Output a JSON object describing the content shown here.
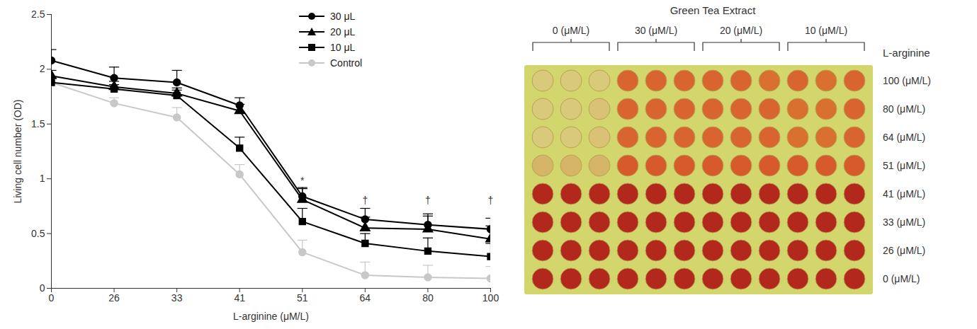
{
  "chart_data": {
    "type": "line",
    "x_label": "L-arginine (μM/L)",
    "y_label": "Living cell number (OD)",
    "categories": [
      "0",
      "26",
      "33",
      "41",
      "51",
      "64",
      "80",
      "100"
    ],
    "ylim": [
      0,
      2.5
    ],
    "yticks": [
      0,
      0.5,
      1,
      1.5,
      2,
      2.5
    ],
    "legend": "upper right",
    "series": [
      {
        "name": "30 μL",
        "color": "#000000",
        "marker": "circle",
        "values": [
          2.08,
          1.92,
          1.88,
          1.67,
          0.84,
          0.63,
          0.58,
          0.54
        ],
        "errors": [
          0.1,
          0.1,
          0.11,
          0.07,
          0.08,
          0.1,
          0.1,
          0.1
        ]
      },
      {
        "name": "20 μL",
        "color": "#000000",
        "marker": "triangle",
        "values": [
          1.94,
          1.84,
          1.78,
          1.62,
          0.81,
          0.55,
          0.54,
          0.45
        ],
        "errors": [
          0.05,
          0.05,
          0.05,
          0.06,
          0.1,
          0.1,
          0.12,
          0.12
        ]
      },
      {
        "name": "10 μL",
        "color": "#000000",
        "marker": "square",
        "values": [
          1.88,
          1.82,
          1.76,
          1.28,
          0.61,
          0.41,
          0.34,
          0.29
        ],
        "errors": [
          0.05,
          0.04,
          0.05,
          0.1,
          0.12,
          0.09,
          0.12,
          0.12
        ]
      },
      {
        "name": "Control",
        "color": "#c8c8c8",
        "marker": "circle",
        "values": [
          1.88,
          1.69,
          1.56,
          1.04,
          0.33,
          0.12,
          0.1,
          0.09
        ],
        "errors": [
          0.04,
          0.05,
          0.09,
          0.09,
          0.11,
          0.12,
          0.11,
          0.11
        ]
      }
    ],
    "annotations": [
      {
        "x": "51",
        "y": 0.98,
        "text": "*"
      },
      {
        "x": "64",
        "y": 0.8,
        "text": "†"
      },
      {
        "x": "80",
        "y": 0.8,
        "text": "†"
      },
      {
        "x": "100",
        "y": 0.8,
        "text": "†"
      }
    ]
  },
  "plate": {
    "title": "Green Tea Extract",
    "groups": [
      "0 (μM/L)",
      "30 (μM/L)",
      "20 (μM/L)",
      "10 (μM/L)"
    ],
    "row_header": "L-arginine",
    "rows": [
      {
        "label": "100 (μM/L)",
        "colors": [
          "#d9c97a",
          "#d9c97a",
          "#d9c97a",
          "#d8652f",
          "#d8652f",
          "#d8652f",
          "#d8652f",
          "#d8652f",
          "#d9702f",
          "#d8652f",
          "#d9702f",
          "#d8652f"
        ]
      },
      {
        "label": "80 (μM/L)",
        "colors": [
          "#d9c97a",
          "#d9c97a",
          "#d9c275",
          "#d8652f",
          "#d8652f",
          "#d8652f",
          "#d8652f",
          "#d8652f",
          "#d8652f",
          "#d9702f",
          "#d9702f",
          "#d8652f"
        ]
      },
      {
        "label": "64 (μM/L)",
        "colors": [
          "#d9c97a",
          "#d9c97a",
          "#d9c275",
          "#d8652f",
          "#d8652f",
          "#d8652f",
          "#d8652f",
          "#d8652f",
          "#d8652f",
          "#d9702f",
          "#d9702f",
          "#d8652f"
        ]
      },
      {
        "label": "51 (μM/L)",
        "colors": [
          "#d6b468",
          "#d6b468",
          "#d6b468",
          "#d65a2c",
          "#d65a2c",
          "#d65a2c",
          "#d65a2c",
          "#d65a2c",
          "#d65a2c",
          "#d65a2c",
          "#d65a2c",
          "#d65a2c"
        ]
      },
      {
        "label": "41 (μM/L)",
        "colors": [
          "#b2281c",
          "#b2281c",
          "#b2281c",
          "#b2281c",
          "#b2281c",
          "#b2281c",
          "#b2281c",
          "#b2281c",
          "#b2281c",
          "#b2281c",
          "#b2281c",
          "#b2281c"
        ]
      },
      {
        "label": "33 (μM/L)",
        "colors": [
          "#b2281c",
          "#b2281c",
          "#b2281c",
          "#b2281c",
          "#b2281c",
          "#b2281c",
          "#b2281c",
          "#b2281c",
          "#b2281c",
          "#b2281c",
          "#b2281c",
          "#b2281c"
        ]
      },
      {
        "label": "26 (μM/L)",
        "colors": [
          "#b2281c",
          "#b2281c",
          "#b2281c",
          "#b2281c",
          "#b2281c",
          "#b2281c",
          "#b2281c",
          "#b2281c",
          "#b2281c",
          "#b2281c",
          "#b2281c",
          "#b2281c"
        ]
      },
      {
        "label": "0 (μM/L)",
        "colors": [
          "#b2281c",
          "#b2281c",
          "#b2281c",
          "#b2281c",
          "#b2281c",
          "#b2281c",
          "#b2281c",
          "#b2281c",
          "#b2281c",
          "#b2281c",
          "#b2281c",
          "#b2281c"
        ]
      }
    ]
  }
}
